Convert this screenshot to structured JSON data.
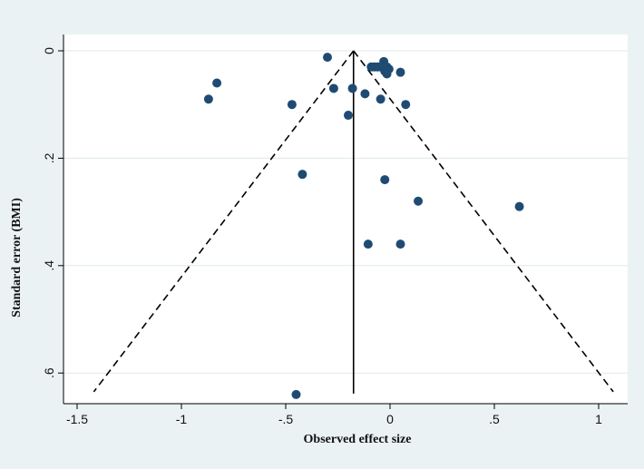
{
  "chart_data": {
    "type": "scatter",
    "title": "",
    "xlabel": "Observed effect size",
    "ylabel": "Standard error (BMI)",
    "xlim": [
      -1.55,
      1.12
    ],
    "ylim": [
      0,
      0.66
    ],
    "y_reversed": true,
    "x_ticks": [
      -1.5,
      -1,
      -0.5,
      0,
      0.5,
      1
    ],
    "x_tick_labels": [
      "-1.5",
      "-1",
      "-.5",
      "0",
      ".5",
      "1"
    ],
    "y_ticks": [
      0,
      0.2,
      0.4,
      0.6
    ],
    "y_tick_labels": [
      "0",
      ".2",
      ".4",
      ".6"
    ],
    "grid": true,
    "colors": {
      "background": "#eaf2f3",
      "plot_area": "#ffffff",
      "grid": "#dde9ea",
      "points": "#1f4b73",
      "lines": "#000000"
    },
    "pooled_effect": -0.175,
    "funnel": {
      "apex": [
        -0.175,
        0
      ],
      "left_bottom": [
        -1.42,
        0.635
      ],
      "right_bottom": [
        1.07,
        0.635
      ]
    },
    "series": [
      {
        "points": [
          {
            "x": -0.3,
            "y": 0.012
          },
          {
            "x": -0.03,
            "y": 0.02
          },
          {
            "x": -0.09,
            "y": 0.03
          },
          {
            "x": -0.075,
            "y": 0.03
          },
          {
            "x": -0.06,
            "y": 0.03
          },
          {
            "x": -0.045,
            "y": 0.03
          },
          {
            "x": -0.015,
            "y": 0.03
          },
          {
            "x": -0.005,
            "y": 0.034
          },
          {
            "x": -0.025,
            "y": 0.038
          },
          {
            "x": 0.05,
            "y": 0.04
          },
          {
            "x": -0.015,
            "y": 0.043
          },
          {
            "x": -0.83,
            "y": 0.06
          },
          {
            "x": -0.27,
            "y": 0.07
          },
          {
            "x": -0.18,
            "y": 0.07
          },
          {
            "x": -0.12,
            "y": 0.08
          },
          {
            "x": -0.045,
            "y": 0.09
          },
          {
            "x": -0.87,
            "y": 0.09
          },
          {
            "x": -0.47,
            "y": 0.1
          },
          {
            "x": 0.075,
            "y": 0.1
          },
          {
            "x": -0.2,
            "y": 0.12
          },
          {
            "x": -0.42,
            "y": 0.23
          },
          {
            "x": -0.025,
            "y": 0.24
          },
          {
            "x": 0.135,
            "y": 0.28
          },
          {
            "x": 0.62,
            "y": 0.29
          },
          {
            "x": -0.105,
            "y": 0.36
          },
          {
            "x": 0.05,
            "y": 0.36
          },
          {
            "x": -0.45,
            "y": 0.64
          }
        ]
      }
    ]
  }
}
